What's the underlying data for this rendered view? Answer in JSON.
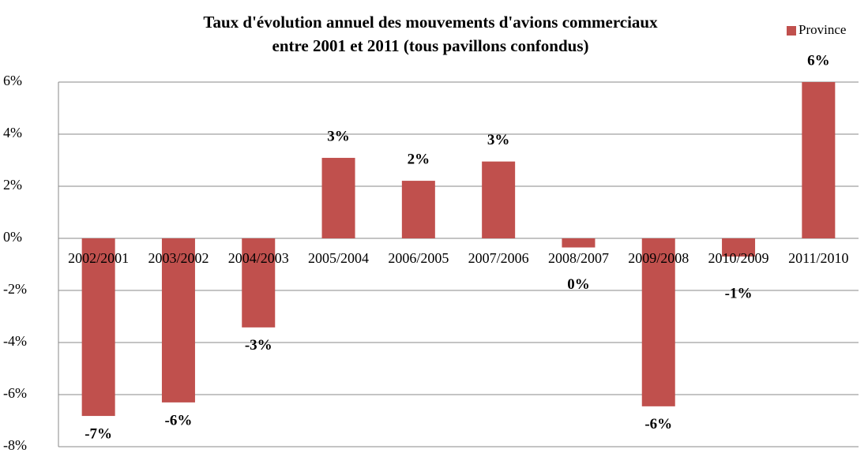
{
  "chart_data": {
    "type": "bar",
    "title": [
      "Taux d'évolution annuel des mouvements d'avions commerciaux",
      "entre 2001 et 2011 (tous pavillons confondus)"
    ],
    "categories": [
      "2002/2001",
      "2003/2002",
      "2004/2003",
      "2005/2004",
      "2006/2005",
      "2007/2006",
      "2008/2007",
      "2009/2008",
      "2010/2009",
      "2011/2010"
    ],
    "series": [
      {
        "name": "Province",
        "color": "#c0504d",
        "values": [
          -6.82,
          -6.3,
          -3.42,
          3.09,
          2.21,
          2.95,
          -0.35,
          -6.45,
          -0.7,
          6.0
        ],
        "value_labels": [
          "-7%",
          "-6%",
          "-3%",
          "3%",
          "2%",
          "3%",
          "0%",
          "-6%",
          "-1%",
          "6%"
        ]
      }
    ],
    "ylim": [
      -8,
      6
    ],
    "yticks": [
      {
        "value": -8,
        "label": "-8%"
      },
      {
        "value": -6,
        "label": "-6%"
      },
      {
        "value": -4,
        "label": "-4%"
      },
      {
        "value": -2,
        "label": "-2%"
      },
      {
        "value": 0,
        "label": "0%"
      },
      {
        "value": 2,
        "label": "2%"
      },
      {
        "value": 4,
        "label": "4%"
      },
      {
        "value": 6,
        "label": "6%"
      }
    ],
    "grid": true,
    "legend": "top-right"
  }
}
